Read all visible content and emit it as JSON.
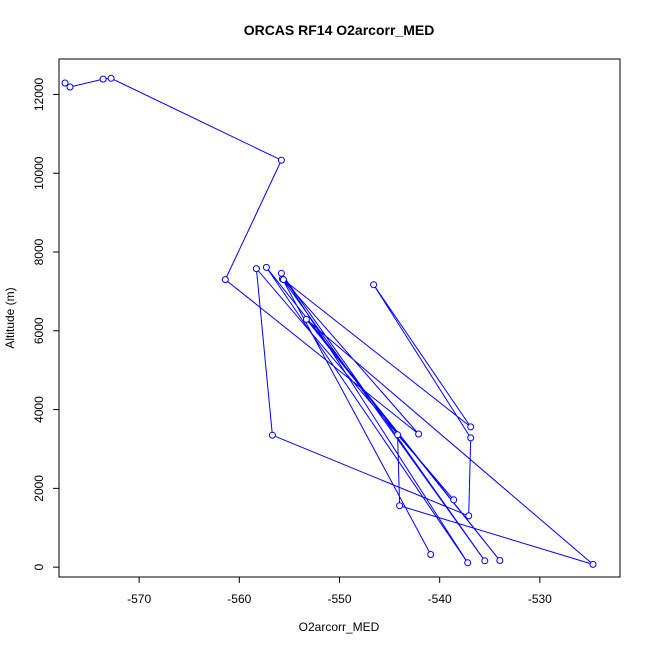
{
  "chart_data": {
    "type": "line",
    "title": "ORCAS RF14 O2arcorr_MED",
    "xlabel": "O2arcorr_MED",
    "ylabel": "Altitude (m)",
    "xlim": [
      -578,
      -522
    ],
    "ylim": [
      -250,
      12900
    ],
    "xticks": [
      -570,
      -560,
      -550,
      -540,
      -530
    ],
    "yticks": [
      0,
      2000,
      4000,
      6000,
      8000,
      10000,
      12000
    ],
    "grid": false,
    "legend": "none",
    "color": "#0000ff",
    "series": [
      {
        "points": [
          [
            -540.9,
            320
          ],
          [
            -555.7,
            7320
          ],
          [
            -535.5,
            160
          ],
          [
            -555.8,
            7460
          ],
          [
            -537.2,
            110
          ],
          [
            -557.3,
            7610
          ],
          [
            -534.0,
            170
          ],
          [
            -553.3,
            6290
          ],
          [
            -524.7,
            70
          ],
          [
            -544.0,
            1560
          ],
          [
            -544.2,
            3360
          ],
          [
            -538.6,
            1710
          ],
          [
            -558.3,
            7580
          ],
          [
            -556.7,
            3350
          ],
          [
            -537.1,
            1300
          ],
          [
            -536.9,
            3280
          ],
          [
            -546.6,
            7170
          ],
          [
            -536.9,
            3560
          ],
          [
            -555.6,
            7300
          ],
          [
            -542.1,
            3380
          ],
          [
            -561.4,
            7300
          ],
          [
            -555.8,
            10330
          ],
          [
            -572.8,
            12410
          ],
          [
            -573.6,
            12390
          ],
          [
            -576.9,
            12190
          ],
          [
            -577.4,
            12290
          ]
        ]
      }
    ]
  }
}
